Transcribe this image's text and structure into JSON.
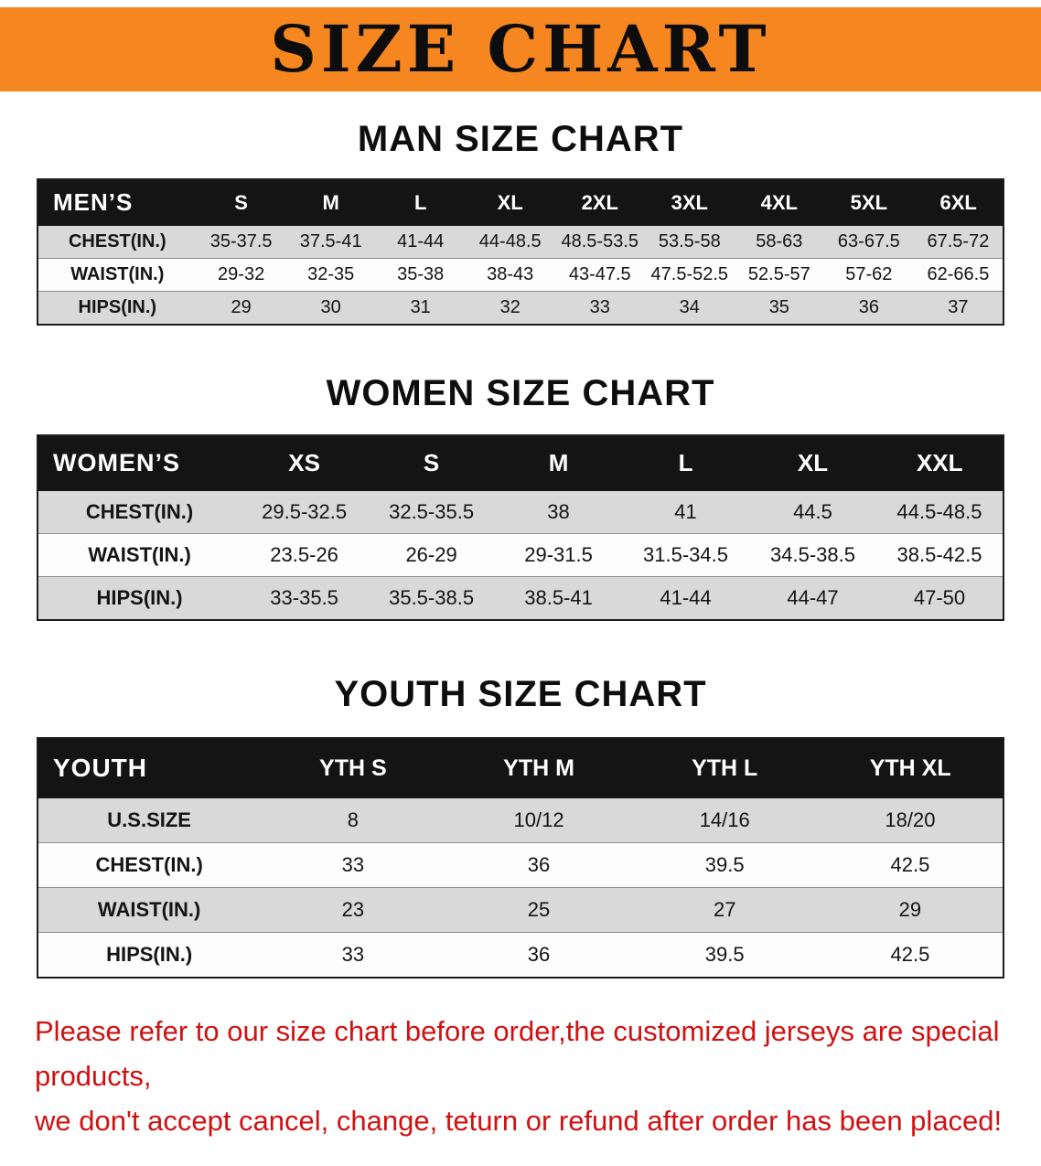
{
  "banner": {
    "title": "SIZE CHART",
    "bg_color": "#f6861f",
    "text_color": "#0d0d0d"
  },
  "colors": {
    "table_header_bg": "#141414",
    "table_header_text": "#ffffff",
    "row_stripe_gray": "#d9d9d9",
    "row_stripe_white": "#fdfdfd",
    "footer_red": "#d01111"
  },
  "sections": [
    {
      "title": "MAN SIZE CHART",
      "header": [
        "MEN’S",
        "S",
        "M",
        "L",
        "XL",
        "2XL",
        "3XL",
        "4XL",
        "5XL",
        "6XL"
      ],
      "rows": [
        [
          "CHEST(IN.)",
          "35-37.5",
          "37.5-41",
          "41-44",
          "44-48.5",
          "48.5-53.5",
          "53.5-58",
          "58-63",
          "63-67.5",
          "67.5-72"
        ],
        [
          "WAIST(IN.)",
          "29-32",
          "32-35",
          "35-38",
          "38-43",
          "43-47.5",
          "47.5-52.5",
          "52.5-57",
          "57-62",
          "62-66.5"
        ],
        [
          "HIPS(IN.)",
          "29",
          "30",
          "31",
          "32",
          "33",
          "34",
          "35",
          "36",
          "37"
        ]
      ]
    },
    {
      "title": "WOMEN SIZE CHART",
      "header": [
        "WOMEN’S",
        "XS",
        "S",
        "M",
        "L",
        "XL",
        "XXL"
      ],
      "rows": [
        [
          "CHEST(IN.)",
          "29.5-32.5",
          "32.5-35.5",
          "38",
          "41",
          "44.5",
          "44.5-48.5"
        ],
        [
          "WAIST(IN.)",
          "23.5-26",
          "26-29",
          "29-31.5",
          "31.5-34.5",
          "34.5-38.5",
          "38.5-42.5"
        ],
        [
          "HIPS(IN.)",
          "33-35.5",
          "35.5-38.5",
          "38.5-41",
          "41-44",
          "44-47",
          "47-50"
        ]
      ]
    },
    {
      "title": "YOUTH SIZE CHART",
      "header": [
        "YOUTH",
        "YTH S",
        "YTH M",
        "YTH L",
        "YTH XL"
      ],
      "rows": [
        [
          "U.S.SIZE",
          "8",
          "10/12",
          "14/16",
          "18/20"
        ],
        [
          "CHEST(IN.)",
          "33",
          "36",
          "39.5",
          "42.5"
        ],
        [
          "WAIST(IN.)",
          "23",
          "25",
          "27",
          "29"
        ],
        [
          "HIPS(IN.)",
          "33",
          "36",
          "39.5",
          "42.5"
        ]
      ]
    }
  ],
  "footer": {
    "line1": "Please refer to our size chart before order,the customized jerseys are special products,",
    "line2": "we don't accept cancel, change, teturn or refund after order has been placed!"
  }
}
